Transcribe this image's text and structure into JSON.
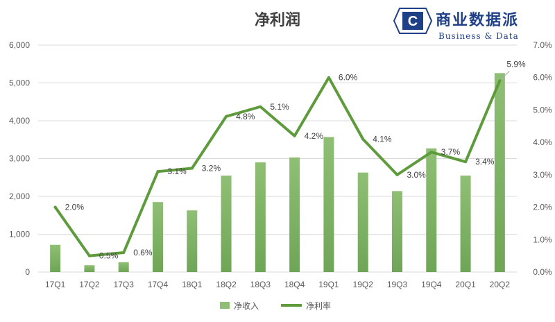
{
  "chart_data": {
    "type": "bar+line",
    "title": "净利润",
    "categories": [
      "17Q1",
      "17Q2",
      "17Q3",
      "17Q4",
      "18Q1",
      "18Q2",
      "18Q3",
      "18Q4",
      "19Q1",
      "19Q2",
      "19Q3",
      "19Q4",
      "20Q1",
      "20Q2"
    ],
    "series": [
      {
        "name": "净收入",
        "type": "bar",
        "axis": "left",
        "color": "#8fbf74",
        "values": [
          720,
          180,
          260,
          1850,
          1630,
          2550,
          2900,
          3030,
          3570,
          2630,
          2140,
          3270,
          2550,
          5260
        ]
      },
      {
        "name": "净利率",
        "type": "line",
        "axis": "right",
        "color": "#5e9b3c",
        "values": [
          2.0,
          0.5,
          0.6,
          3.1,
          3.2,
          4.8,
          5.1,
          4.2,
          6.0,
          4.1,
          3.0,
          3.7,
          3.4,
          5.9
        ],
        "labels": [
          "2.0%",
          "0.5%",
          "0.6%",
          "3.1%",
          "3.2%",
          "4.8%",
          "5.1%",
          "4.2%",
          "6.0%",
          "4.1%",
          "3.0%",
          "3.7%",
          "3.4%",
          "5.9%"
        ]
      }
    ],
    "y_left": {
      "min": 0,
      "max": 6000,
      "ticks": [
        "0",
        "1,000",
        "2,000",
        "3,000",
        "4,000",
        "5,000",
        "6,000"
      ]
    },
    "y_right": {
      "min": 0,
      "max": 7,
      "ticks": [
        "0.0%",
        "1.0%",
        "2.0%",
        "3.0%",
        "4.0%",
        "5.0%",
        "6.0%",
        "7.0%"
      ]
    },
    "grid": true,
    "legend": "bottom"
  },
  "logo": {
    "letter": "C",
    "name_cn": "商业数据派",
    "name_en": "Business & Data",
    "color": "#1f3f86"
  }
}
